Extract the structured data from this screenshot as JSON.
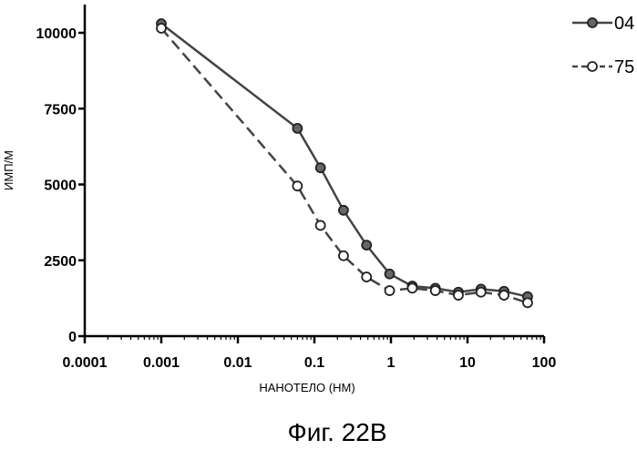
{
  "chart_data": {
    "type": "line",
    "x_scale": "log",
    "xlabel": "НАНОТЕЛО (НМ)",
    "ylabel": "ИМП/М",
    "x_ticks": [
      "0.0001",
      "0.001",
      "0.01",
      "0.1",
      "1",
      "10",
      "100"
    ],
    "y_ticks": [
      "0",
      "2500",
      "5000",
      "7500",
      "10000"
    ],
    "xlim": [
      0.0001,
      100
    ],
    "ylim": [
      0,
      10000
    ],
    "grid": false,
    "legend_position": "top-right",
    "series": [
      {
        "name": "04",
        "style": "solid",
        "marker": "filled-circle",
        "color": "#444444",
        "x": [
          0.001,
          0.06,
          0.12,
          0.24,
          0.48,
          0.96,
          1.9,
          3.8,
          7.6,
          15,
          30,
          61
        ],
        "y": [
          10300,
          6850,
          5550,
          4150,
          3000,
          2050,
          1650,
          1580,
          1450,
          1550,
          1480,
          1300
        ]
      },
      {
        "name": "75",
        "style": "dashed",
        "marker": "open-circle",
        "color": "#444444",
        "x": [
          0.001,
          0.06,
          0.12,
          0.24,
          0.48,
          0.96,
          1.9,
          3.8,
          7.6,
          15,
          30,
          61
        ],
        "y": [
          10150,
          4950,
          3650,
          2650,
          1950,
          1500,
          1580,
          1500,
          1350,
          1450,
          1350,
          1100
        ]
      }
    ]
  },
  "caption": "Фиг. 22В"
}
